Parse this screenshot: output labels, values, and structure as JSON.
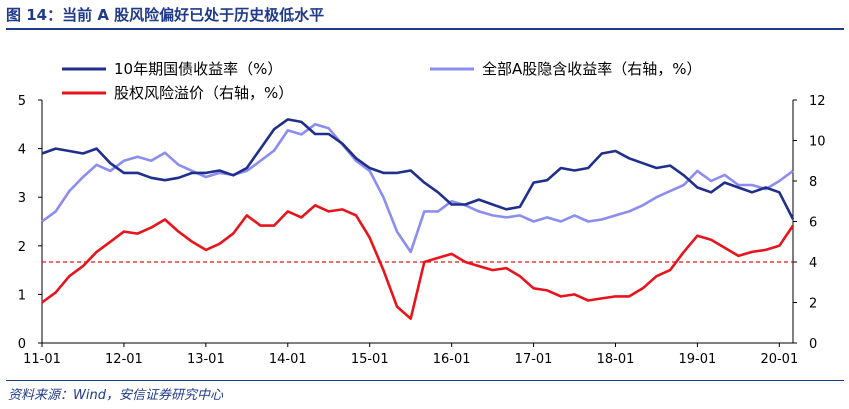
{
  "figure": {
    "title": "图 14：当前 A 股风险偏好已处于历史极低水平",
    "source": "资料来源：Wind，安信证券研究中心"
  },
  "colors": {
    "bond_yield": "#1f2f8c",
    "a_share_yield": "#8b8ef0",
    "risk_premium": "#e8141b",
    "title": "#1f3a8a",
    "axis": "#000000"
  },
  "chart_data": {
    "type": "line",
    "x_tick_labels": [
      "11-01",
      "12-01",
      "13-01",
      "14-01",
      "15-01",
      "16-01",
      "17-01",
      "18-01",
      "19-01",
      "20-01"
    ],
    "x_range": [
      "2011-01",
      "2020-03"
    ],
    "y_left": {
      "ticks": [
        0,
        1,
        2,
        3,
        4,
        5
      ],
      "range": [
        0,
        5
      ]
    },
    "y_right": {
      "ticks": [
        0,
        2,
        4,
        6,
        8,
        10,
        12
      ],
      "range": [
        0,
        12
      ]
    },
    "reference_line": {
      "axis": "right",
      "value": 4,
      "style": "dashed"
    },
    "legend_position": "top",
    "series": [
      {
        "name": "10年期国债收益率（%）",
        "axis": "left",
        "x": [
          "2011-01",
          "2011-03",
          "2011-05",
          "2011-07",
          "2011-09",
          "2011-11",
          "2012-01",
          "2012-03",
          "2012-05",
          "2012-07",
          "2012-09",
          "2012-11",
          "2013-01",
          "2013-03",
          "2013-05",
          "2013-07",
          "2013-09",
          "2013-11",
          "2014-01",
          "2014-03",
          "2014-05",
          "2014-07",
          "2014-09",
          "2014-11",
          "2015-01",
          "2015-03",
          "2015-05",
          "2015-07",
          "2015-09",
          "2015-11",
          "2016-01",
          "2016-03",
          "2016-05",
          "2016-07",
          "2016-09",
          "2016-11",
          "2017-01",
          "2017-03",
          "2017-05",
          "2017-07",
          "2017-09",
          "2017-11",
          "2018-01",
          "2018-03",
          "2018-05",
          "2018-07",
          "2018-09",
          "2018-11",
          "2019-01",
          "2019-03",
          "2019-05",
          "2019-07",
          "2019-09",
          "2019-11",
          "2020-01",
          "2020-03"
        ],
        "values": [
          3.9,
          4.0,
          3.95,
          3.9,
          4.0,
          3.7,
          3.5,
          3.5,
          3.4,
          3.35,
          3.4,
          3.5,
          3.5,
          3.55,
          3.45,
          3.6,
          4.0,
          4.4,
          4.6,
          4.55,
          4.3,
          4.3,
          4.1,
          3.8,
          3.6,
          3.5,
          3.5,
          3.55,
          3.3,
          3.1,
          2.85,
          2.85,
          2.95,
          2.85,
          2.75,
          2.8,
          3.3,
          3.35,
          3.6,
          3.55,
          3.6,
          3.9,
          3.95,
          3.8,
          3.7,
          3.6,
          3.65,
          3.45,
          3.2,
          3.1,
          3.3,
          3.2,
          3.1,
          3.2,
          3.1,
          2.55
        ]
      },
      {
        "name": "全部A股隐含收益率（右轴，%）",
        "axis": "right",
        "x": [
          "2011-01",
          "2011-03",
          "2011-05",
          "2011-07",
          "2011-09",
          "2011-11",
          "2012-01",
          "2012-03",
          "2012-05",
          "2012-07",
          "2012-09",
          "2012-11",
          "2013-01",
          "2013-03",
          "2013-05",
          "2013-07",
          "2013-09",
          "2013-11",
          "2014-01",
          "2014-03",
          "2014-05",
          "2014-07",
          "2014-09",
          "2014-11",
          "2015-01",
          "2015-03",
          "2015-05",
          "2015-07",
          "2015-09",
          "2015-11",
          "2016-01",
          "2016-03",
          "2016-05",
          "2016-07",
          "2016-09",
          "2016-11",
          "2017-01",
          "2017-03",
          "2017-05",
          "2017-07",
          "2017-09",
          "2017-11",
          "2018-01",
          "2018-03",
          "2018-05",
          "2018-07",
          "2018-09",
          "2018-11",
          "2019-01",
          "2019-03",
          "2019-05",
          "2019-07",
          "2019-09",
          "2019-11",
          "2020-01",
          "2020-03"
        ],
        "values": [
          6.0,
          6.5,
          7.5,
          8.2,
          8.8,
          8.5,
          9.0,
          9.2,
          9.0,
          9.4,
          8.8,
          8.5,
          8.2,
          8.4,
          8.3,
          8.5,
          9.0,
          9.5,
          10.5,
          10.3,
          10.8,
          10.6,
          9.8,
          9.0,
          8.5,
          7.2,
          5.5,
          4.5,
          6.5,
          6.5,
          7.0,
          6.8,
          6.5,
          6.3,
          6.2,
          6.3,
          6.0,
          6.2,
          6.0,
          6.3,
          6.0,
          6.1,
          6.3,
          6.5,
          6.8,
          7.2,
          7.5,
          7.8,
          8.5,
          8.0,
          8.3,
          7.8,
          7.8,
          7.6,
          8.0,
          8.5
        ]
      },
      {
        "name": "股权风险溢价（右轴，%）",
        "axis": "right",
        "x": [
          "2011-01",
          "2011-03",
          "2011-05",
          "2011-07",
          "2011-09",
          "2011-11",
          "2012-01",
          "2012-03",
          "2012-05",
          "2012-07",
          "2012-09",
          "2012-11",
          "2013-01",
          "2013-03",
          "2013-05",
          "2013-07",
          "2013-09",
          "2013-11",
          "2014-01",
          "2014-03",
          "2014-05",
          "2014-07",
          "2014-09",
          "2014-11",
          "2015-01",
          "2015-03",
          "2015-05",
          "2015-07",
          "2015-09",
          "2015-11",
          "2016-01",
          "2016-03",
          "2016-05",
          "2016-07",
          "2016-09",
          "2016-11",
          "2017-01",
          "2017-03",
          "2017-05",
          "2017-07",
          "2017-09",
          "2017-11",
          "2018-01",
          "2018-03",
          "2018-05",
          "2018-07",
          "2018-09",
          "2018-11",
          "2019-01",
          "2019-03",
          "2019-05",
          "2019-07",
          "2019-09",
          "2019-11",
          "2020-01",
          "2020-03"
        ],
        "values": [
          2.0,
          2.5,
          3.3,
          3.8,
          4.5,
          5.0,
          5.5,
          5.4,
          5.7,
          6.1,
          5.5,
          5.0,
          4.6,
          4.9,
          5.4,
          6.3,
          5.8,
          5.8,
          6.5,
          6.2,
          6.8,
          6.5,
          6.6,
          6.3,
          5.2,
          3.6,
          1.8,
          1.2,
          4.0,
          4.2,
          4.4,
          4.0,
          3.8,
          3.6,
          3.7,
          3.3,
          2.7,
          2.6,
          2.3,
          2.4,
          2.1,
          2.2,
          2.3,
          2.3,
          2.7,
          3.3,
          3.6,
          4.5,
          5.3,
          5.1,
          4.7,
          4.3,
          4.5,
          4.6,
          4.8,
          5.8
        ]
      }
    ]
  }
}
